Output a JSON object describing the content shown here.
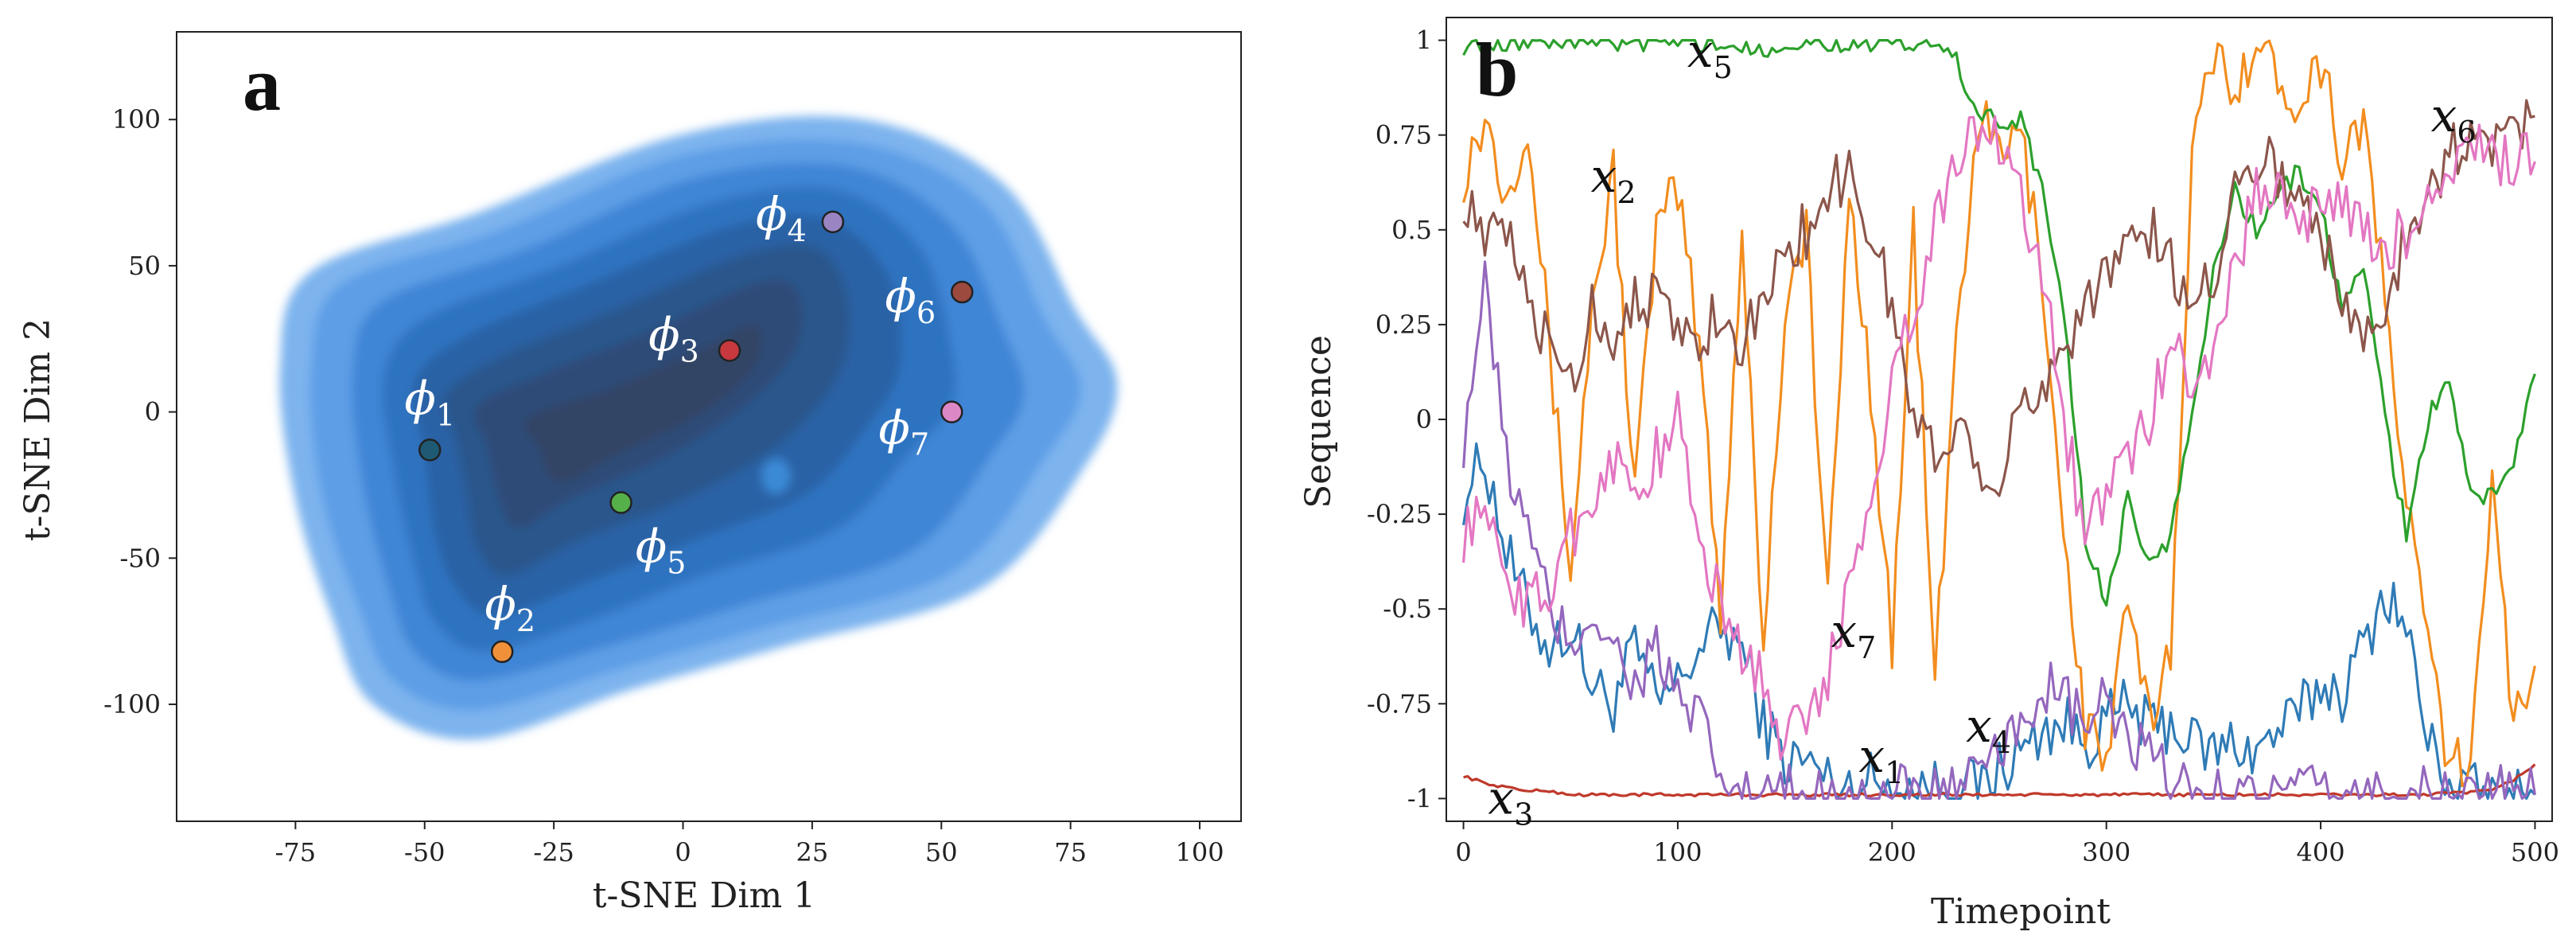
{
  "chart_data": [
    {
      "panel": "a",
      "type": "scatter",
      "subtype": "kde-density-contour",
      "xlabel": "t-SNE Dim 1",
      "ylabel": "t-SNE Dim 2",
      "xlim": [
        -98,
        108
      ],
      "ylim": [
        -140,
        130
      ],
      "xticks": [
        -75,
        -50,
        -25,
        0,
        25,
        50,
        75,
        100
      ],
      "yticks": [
        100,
        50,
        0,
        -50,
        -100
      ],
      "grid": false,
      "contour_colors": [
        "#7db4ee",
        "#5d9ee6",
        "#3f86d6",
        "#2e73c0",
        "#2a62a6",
        "#2c568c",
        "#2f4c78",
        "#334565"
      ],
      "points": [
        {
          "label": "ϕ",
          "sub": "1",
          "x": -49,
          "y": -13,
          "color": "#1f5a74"
        },
        {
          "label": "ϕ",
          "sub": "2",
          "x": -35,
          "y": -82,
          "color": "#f0913a"
        },
        {
          "label": "ϕ",
          "sub": "3",
          "x": 9,
          "y": 21,
          "color": "#c8383f"
        },
        {
          "label": "ϕ",
          "sub": "4",
          "x": 29,
          "y": 65,
          "color": "#9a85c2"
        },
        {
          "label": "ϕ",
          "sub": "5",
          "x": -12,
          "y": -31,
          "color": "#56b04a"
        },
        {
          "label": "ϕ",
          "sub": "6",
          "x": 54,
          "y": 41,
          "color": "#9c4a3e"
        },
        {
          "label": "ϕ",
          "sub": "7",
          "x": 52,
          "y": 0,
          "color": "#dd88c6"
        }
      ]
    },
    {
      "panel": "b",
      "type": "line",
      "xlabel": "Timepoint",
      "ylabel": "Sequence",
      "xlim": [
        -8,
        508
      ],
      "ylim": [
        -1.06,
        1.06
      ],
      "xticks": [
        0,
        100,
        200,
        300,
        400,
        500
      ],
      "yticks": [
        1,
        0.75,
        0.5,
        0.25,
        0,
        -0.25,
        -0.5,
        -0.75,
        -1
      ],
      "ytick_labels": [
        "1",
        "0.75",
        "0.5",
        "0.25",
        "0",
        "-0.25",
        "-0.5",
        "-0.75",
        "-1"
      ],
      "grid": false,
      "series": [
        {
          "name": "x",
          "sub": "1",
          "color": "#2f7bb6",
          "x": [
            0,
            10,
            20,
            30,
            40,
            50,
            60,
            70,
            80,
            90,
            100,
            110,
            120,
            130,
            140,
            150,
            160,
            170,
            180,
            190,
            200,
            210,
            220,
            230,
            240,
            250,
            260,
            270,
            280,
            290,
            300,
            310,
            320,
            330,
            340,
            350,
            360,
            370,
            380,
            390,
            400,
            410,
            420,
            430,
            440,
            450,
            460,
            470,
            480,
            490,
            500
          ],
          "y": [
            -0.2,
            -0.1,
            -0.35,
            -0.5,
            -0.6,
            -0.55,
            -0.7,
            -0.75,
            -0.6,
            -0.75,
            -0.7,
            -0.6,
            -0.55,
            -0.6,
            -0.8,
            -0.9,
            -0.9,
            -0.95,
            -0.97,
            -0.95,
            -0.97,
            -0.98,
            -0.97,
            -0.95,
            -0.98,
            -0.92,
            -0.88,
            -0.82,
            -0.8,
            -0.85,
            -0.8,
            -0.75,
            -0.82,
            -0.8,
            -0.85,
            -0.88,
            -0.85,
            -0.88,
            -0.82,
            -0.78,
            -0.7,
            -0.72,
            -0.6,
            -0.45,
            -0.55,
            -0.85,
            -0.95,
            -0.98,
            -0.99,
            -0.99,
            -0.99
          ]
        },
        {
          "name": "x",
          "sub": "2",
          "color": "#f28d1f",
          "x": [
            0,
            10,
            20,
            30,
            40,
            50,
            60,
            70,
            80,
            90,
            100,
            110,
            120,
            130,
            140,
            150,
            160,
            170,
            180,
            190,
            200,
            210,
            220,
            230,
            240,
            250,
            260,
            270,
            280,
            290,
            300,
            310,
            320,
            330,
            340,
            350,
            360,
            370,
            380,
            390,
            400,
            410,
            420,
            430,
            440,
            450,
            460,
            470,
            480,
            490,
            500
          ],
          "y": [
            0.65,
            0.8,
            0.6,
            0.8,
            0.2,
            -0.4,
            0.3,
            0.65,
            -0.2,
            0.5,
            0.6,
            0.2,
            -0.5,
            0.5,
            -0.6,
            0.3,
            0.5,
            -0.5,
            0.6,
            0.1,
            -0.6,
            0.5,
            -0.7,
            0.2,
            0.8,
            0.7,
            0.75,
            0.4,
            -0.3,
            -0.8,
            -0.9,
            -0.5,
            -0.8,
            -0.6,
            0.7,
            0.95,
            0.9,
            0.98,
            0.9,
            0.85,
            0.95,
            0.7,
            0.8,
            0.3,
            -0.2,
            -0.6,
            -0.9,
            -0.95,
            -0.1,
            -0.8,
            -0.65
          ]
        },
        {
          "name": "x",
          "sub": "3",
          "color": "#c0392b",
          "x": [
            0,
            10,
            20,
            30,
            40,
            50,
            100,
            150,
            200,
            250,
            300,
            350,
            400,
            450,
            480,
            490,
            500
          ],
          "y": [
            -0.94,
            -0.96,
            -0.97,
            -0.98,
            -0.98,
            -0.99,
            -0.99,
            -0.99,
            -0.99,
            -0.99,
            -0.99,
            -0.99,
            -0.99,
            -0.99,
            -0.98,
            -0.95,
            -0.91
          ]
        },
        {
          "name": "x",
          "sub": "4",
          "color": "#9467bd",
          "x": [
            0,
            10,
            20,
            30,
            40,
            50,
            60,
            70,
            80,
            90,
            100,
            110,
            120,
            130,
            140,
            150,
            160,
            170,
            180,
            190,
            200,
            210,
            220,
            230,
            240,
            250,
            260,
            270,
            280,
            290,
            300,
            310,
            320,
            330,
            340,
            350,
            400,
            450,
            500
          ],
          "y": [
            -0.05,
            0.35,
            -0.1,
            -0.3,
            -0.5,
            -0.6,
            -0.5,
            -0.6,
            -0.7,
            -0.6,
            -0.75,
            -0.8,
            -0.95,
            -0.99,
            -0.99,
            -0.99,
            -0.99,
            -0.99,
            -0.99,
            -0.99,
            -0.99,
            -0.99,
            -0.99,
            -0.98,
            -0.95,
            -0.9,
            -0.8,
            -0.7,
            -0.75,
            -0.8,
            -0.75,
            -0.85,
            -0.9,
            -0.95,
            -0.99,
            -0.99,
            -0.99,
            -0.99,
            -0.99
          ]
        },
        {
          "name": "x",
          "sub": "5",
          "color": "#2ca02c",
          "x": [
            0,
            20,
            40,
            60,
            80,
            100,
            120,
            140,
            160,
            180,
            200,
            210,
            220,
            230,
            240,
            250,
            260,
            270,
            280,
            290,
            300,
            310,
            320,
            330,
            340,
            350,
            360,
            370,
            380,
            390,
            400,
            410,
            420,
            430,
            440,
            450,
            460,
            470,
            480,
            490,
            500
          ],
          "y": [
            0.99,
            1.0,
            1.0,
            1.0,
            0.99,
            1.0,
            0.99,
            0.98,
            1.0,
            0.99,
            0.99,
            0.99,
            0.98,
            0.95,
            0.8,
            0.78,
            0.8,
            0.6,
            0.3,
            -0.3,
            -0.5,
            -0.2,
            -0.4,
            -0.3,
            0.0,
            0.4,
            0.6,
            0.5,
            0.6,
            0.65,
            0.55,
            0.3,
            0.4,
            0.0,
            -0.3,
            0.0,
            0.1,
            -0.2,
            -0.2,
            -0.1,
            0.12
          ]
        },
        {
          "name": "x",
          "sub": "6",
          "color": "#8c564b",
          "x": [
            0,
            10,
            20,
            30,
            40,
            50,
            60,
            70,
            80,
            90,
            100,
            110,
            120,
            130,
            140,
            150,
            160,
            170,
            180,
            190,
            200,
            210,
            220,
            230,
            240,
            250,
            260,
            270,
            280,
            290,
            300,
            310,
            320,
            330,
            340,
            350,
            360,
            370,
            380,
            390,
            400,
            410,
            420,
            430,
            440,
            450,
            460,
            470,
            480,
            490,
            500
          ],
          "y": [
            0.6,
            0.45,
            0.5,
            0.3,
            0.2,
            0.1,
            0.3,
            0.2,
            0.35,
            0.3,
            0.25,
            0.2,
            0.3,
            0.2,
            0.3,
            0.45,
            0.5,
            0.6,
            0.65,
            0.5,
            0.3,
            0.0,
            -0.1,
            0.0,
            -0.1,
            -0.15,
            0.0,
            0.1,
            0.2,
            0.3,
            0.4,
            0.45,
            0.5,
            0.4,
            0.3,
            0.4,
            0.6,
            0.7,
            0.65,
            0.6,
            0.5,
            0.3,
            0.2,
            0.3,
            0.5,
            0.6,
            0.7,
            0.75,
            0.7,
            0.78,
            0.8
          ]
        },
        {
          "name": "x",
          "sub": "7",
          "color": "#e377c2",
          "x": [
            0,
            10,
            20,
            30,
            40,
            50,
            60,
            70,
            80,
            90,
            100,
            110,
            120,
            130,
            140,
            150,
            160,
            170,
            180,
            190,
            200,
            210,
            220,
            230,
            240,
            250,
            260,
            270,
            280,
            290,
            300,
            310,
            320,
            330,
            340,
            350,
            360,
            370,
            380,
            390,
            400,
            410,
            420,
            430,
            440,
            450,
            460,
            470,
            480,
            490,
            500
          ],
          "y": [
            -0.3,
            -0.25,
            -0.4,
            -0.5,
            -0.45,
            -0.3,
            -0.2,
            -0.1,
            -0.2,
            -0.1,
            0.0,
            -0.3,
            -0.5,
            -0.6,
            -0.7,
            -0.85,
            -0.8,
            -0.7,
            -0.4,
            -0.2,
            0.1,
            0.3,
            0.5,
            0.7,
            0.75,
            0.75,
            0.6,
            0.4,
            0.0,
            -0.3,
            -0.2,
            -0.1,
            0.0,
            0.2,
            0.1,
            0.2,
            0.4,
            0.6,
            0.6,
            0.5,
            0.6,
            0.55,
            0.5,
            0.45,
            0.5,
            0.55,
            0.65,
            0.7,
            0.7,
            0.68,
            0.68
          ]
        }
      ]
    }
  ]
}
